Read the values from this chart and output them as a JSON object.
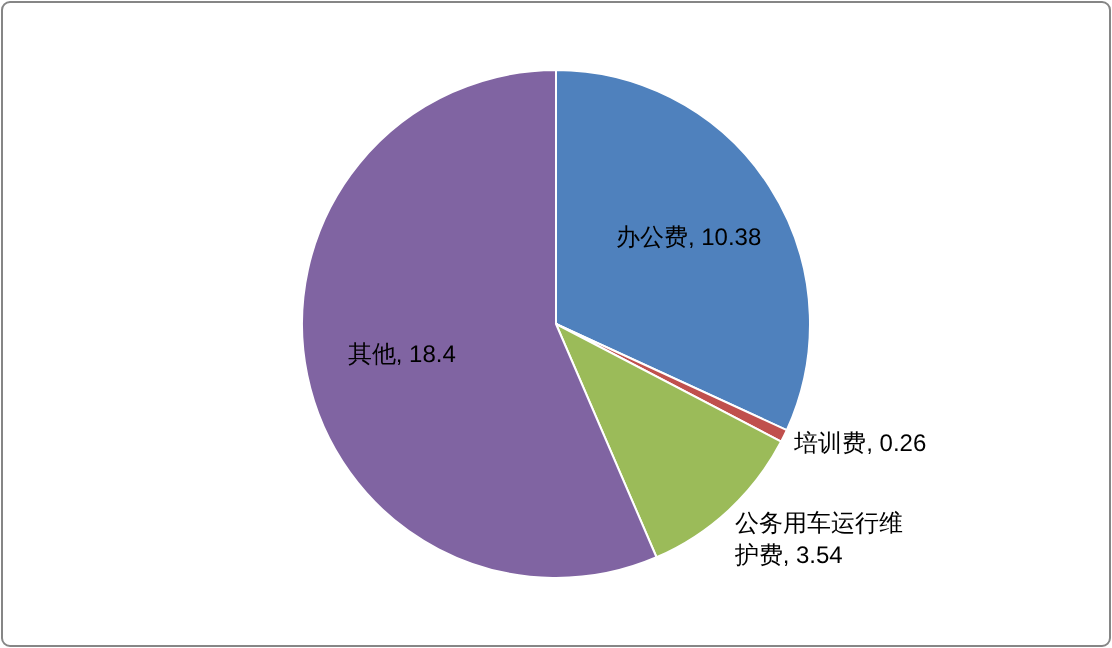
{
  "chart_data": {
    "type": "pie",
    "categories": [
      "办公费",
      "培训费",
      "公务用车运行维护费",
      "其他"
    ],
    "values": [
      10.38,
      0.26,
      3.54,
      18.4
    ],
    "value_labels": [
      ", 10.38",
      ", 0.26",
      ", 3.54",
      ", 18.4"
    ],
    "colors": [
      "#4f81bd",
      "#c0504d",
      "#9bbb59",
      "#8064a2"
    ],
    "legend": false
  }
}
